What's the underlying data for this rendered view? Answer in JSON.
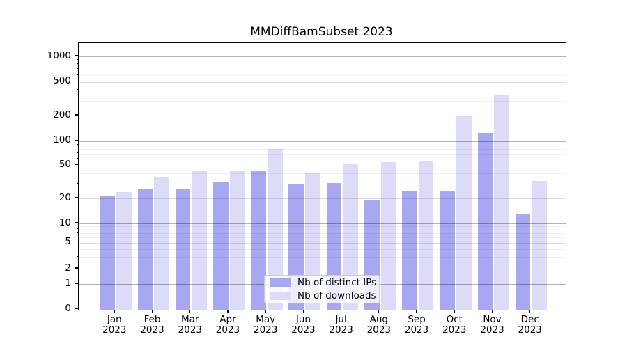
{
  "title": "MMDiffBamSubset 2023",
  "chart_data": {
    "type": "bar",
    "title": "MMDiffBamSubset 2023",
    "categories": [
      "Jan",
      "Feb",
      "Mar",
      "Apr",
      "May",
      "Jun",
      "Jul",
      "Aug",
      "Sep",
      "Oct",
      "Nov",
      "Dec"
    ],
    "year": "2023",
    "series": [
      {
        "name": "Nb of distinct IPs",
        "color": "#a7a7f2",
        "values": [
          22,
          26,
          26,
          32,
          44,
          30,
          31,
          19,
          25,
          25,
          125,
          13
        ]
      },
      {
        "name": "Nb of downloads",
        "color": "#dcdcf9",
        "values": [
          24,
          36,
          43,
          43,
          81,
          41,
          52,
          55,
          56,
          200,
          350,
          33
        ]
      }
    ],
    "yscale": "log-with-zero",
    "y_ticks": [
      1000,
      500,
      200,
      100,
      50,
      20,
      10,
      5,
      2,
      1,
      0
    ],
    "ylim": [
      0,
      1500
    ],
    "grid": "on",
    "legend_position": "lower center",
    "xlabel": "",
    "ylabel": ""
  }
}
